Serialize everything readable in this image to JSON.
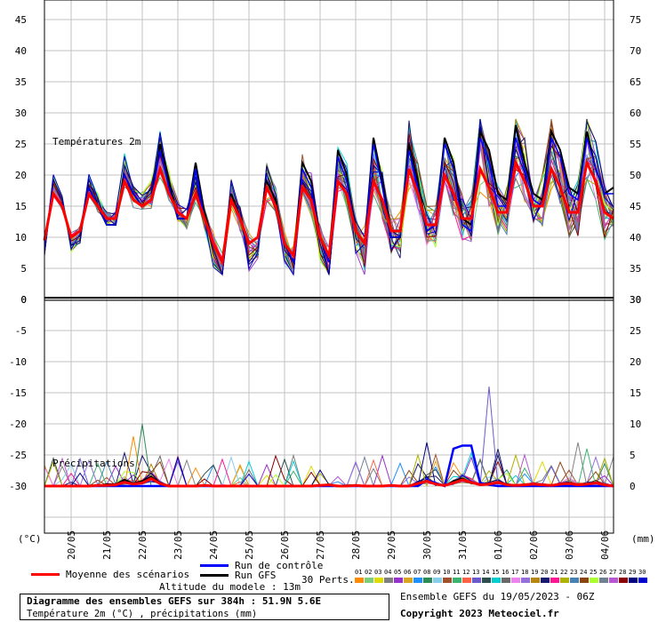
{
  "chart_data": [
    {
      "type": "line",
      "panel": "temperature",
      "label": "Températures 2m",
      "ylim_left": [
        0,
        45
      ],
      "yticks_left": [
        "0",
        "5",
        "10",
        "15",
        "20",
        "25",
        "30",
        "35",
        "40",
        "45"
      ],
      "yticks_right": [
        "30",
        "35",
        "40",
        "45",
        "50",
        "55",
        "60",
        "65",
        "70",
        "75"
      ],
      "x_dates": [
        "20/05",
        "21/05",
        "22/05",
        "23/05",
        "24/05",
        "25/05",
        "26/05",
        "27/05",
        "28/05",
        "29/05",
        "30/05",
        "31/05",
        "01/06",
        "02/06",
        "03/06",
        "04/06"
      ],
      "x_hours": [
        0,
        384
      ],
      "mean_series": {
        "name": "Moyenne des scénarios",
        "x": [
          0,
          6,
          12,
          18,
          24,
          30,
          36,
          42,
          48,
          54,
          60,
          66,
          72,
          78,
          84,
          90,
          96,
          102,
          108,
          114,
          120,
          126,
          132,
          138,
          144,
          150,
          156,
          162,
          168,
          174,
          180,
          186,
          192,
          198,
          204,
          210,
          216,
          222,
          228,
          234,
          240,
          246,
          252,
          258,
          264,
          270,
          276,
          282,
          288,
          294,
          300,
          306,
          312,
          318,
          324,
          330,
          336,
          342,
          348,
          354,
          360,
          366,
          372,
          378,
          384
        ],
        "y": [
          9.5,
          17,
          15,
          10,
          11,
          17,
          15,
          13,
          13,
          19,
          16,
          15,
          16,
          21,
          17,
          14,
          13,
          17,
          13,
          9,
          6,
          16,
          13,
          9,
          10,
          18,
          15,
          9,
          7,
          18,
          16,
          10,
          7,
          19,
          17,
          11,
          9,
          19,
          16,
          11,
          11,
          21,
          17,
          12,
          12,
          20,
          17,
          13,
          13,
          21,
          18,
          14,
          14,
          22,
          19,
          15,
          15,
          21,
          18,
          14,
          14,
          22,
          19,
          14,
          13
        ]
      },
      "gfs_series": {
        "name": "Run GFS",
        "x": [
          0,
          6,
          12,
          18,
          24,
          30,
          36,
          42,
          48,
          54,
          60,
          66,
          72,
          78,
          84,
          90,
          96,
          102,
          108,
          114,
          120,
          126,
          132,
          138,
          144,
          150,
          156,
          162,
          168,
          174,
          180,
          186,
          192,
          198,
          204,
          210,
          216,
          222,
          228,
          234,
          240,
          246,
          252,
          258,
          264,
          270,
          276,
          282,
          288,
          294,
          300,
          306,
          312,
          318,
          324,
          330,
          336,
          342,
          348,
          354,
          360,
          366,
          372,
          378,
          384
        ],
        "y": [
          9.5,
          17,
          15,
          10,
          11,
          18,
          15,
          12,
          12,
          20,
          17,
          15,
          16,
          25,
          19,
          13,
          13,
          22,
          14,
          9,
          6,
          17,
          13,
          9,
          10,
          19,
          16,
          9,
          6,
          22,
          19,
          10,
          6,
          24,
          20,
          11,
          9,
          26,
          19,
          10,
          10,
          25,
          19,
          11,
          12,
          26,
          22,
          13,
          12,
          27,
          24,
          17,
          16,
          28,
          22,
          17,
          16,
          27,
          24,
          18,
          17,
          27,
          21,
          17,
          18
        ]
      },
      "control_series": {
        "name": "Run de contrôle",
        "x": [
          0,
          6,
          12,
          18,
          24,
          30,
          36,
          42,
          48,
          54,
          60,
          66,
          72,
          78,
          84,
          90,
          96,
          102,
          108,
          114,
          120,
          126,
          132,
          138,
          144,
          150,
          156,
          162,
          168,
          174,
          180,
          186,
          192,
          198,
          204,
          210,
          216,
          222,
          228,
          234,
          240,
          246,
          252,
          258,
          264,
          270,
          276,
          282,
          288,
          294,
          300,
          306,
          312,
          318,
          324,
          330,
          336,
          342,
          348,
          354,
          360,
          366,
          372,
          378,
          384
        ],
        "y": [
          9.5,
          17,
          15,
          10,
          11,
          18,
          15,
          12,
          12,
          20,
          17,
          15,
          16,
          24,
          18,
          13,
          13,
          21,
          13,
          9,
          6,
          16,
          13,
          9,
          10,
          18,
          15,
          9,
          6,
          21,
          18,
          10,
          6,
          23,
          19,
          11,
          9,
          25,
          18,
          10,
          10,
          24,
          18,
          11,
          12,
          25,
          21,
          12,
          11,
          26,
          22,
          15,
          15,
          26,
          21,
          16,
          15,
          26,
          23,
          17,
          16,
          26,
          21,
          17,
          17
        ]
      },
      "perturbation_count": "30 Perts.",
      "member_ids": [
        "01",
        "02",
        "03",
        "04",
        "05",
        "06",
        "07",
        "08",
        "09",
        "10",
        "11",
        "12",
        "13",
        "14",
        "15",
        "16",
        "17",
        "18",
        "19",
        "20",
        "21",
        "22",
        "23",
        "24",
        "25",
        "26",
        "27",
        "28",
        "29",
        "30"
      ],
      "member_colors": [
        "#ff8c00",
        "#7ccd7c",
        "#dddd00",
        "#808080",
        "#9932cc",
        "#daa520",
        "#1e90ff",
        "#2e8b57",
        "#87ceeb",
        "#a0522d",
        "#3cb371",
        "#ff6347",
        "#6a5acd",
        "#2f4f4f",
        "#00ced1",
        "#696969",
        "#ee82ee",
        "#9370db",
        "#b8860b",
        "#191970",
        "#ff1493",
        "#b0b000",
        "#4682b4",
        "#8b4513",
        "#adff2f",
        "#708090",
        "#ba55d3",
        "#8b0000",
        "#000080",
        "#0000cd"
      ]
    },
    {
      "type": "line",
      "panel": "precipitation",
      "label": "Précipitations",
      "ylim_left": [
        -35,
        0
      ],
      "yticks_left": [
        "-30",
        "-25",
        "-20",
        "-15",
        "-10",
        "-5",
        "0"
      ],
      "yticks_right": [
        "0",
        "5",
        "10",
        "15",
        "20",
        "25",
        "30"
      ],
      "left_unit": "(°C)",
      "right_unit": "(mm)",
      "mean_series": {
        "name": "Moyenne des scénarios",
        "x": [
          0,
          6,
          12,
          18,
          24,
          30,
          36,
          42,
          48,
          54,
          60,
          66,
          72,
          78,
          84,
          90,
          96,
          102,
          108,
          114,
          120,
          126,
          132,
          138,
          144,
          150,
          156,
          162,
          168,
          174,
          180,
          186,
          192,
          198,
          204,
          210,
          216,
          222,
          228,
          234,
          240,
          246,
          252,
          258,
          264,
          270,
          276,
          282,
          288,
          294,
          300,
          306,
          312,
          318,
          324,
          330,
          336,
          342,
          348,
          354,
          360,
          366,
          372,
          378,
          384
        ],
        "y": [
          0,
          0,
          0,
          0,
          0,
          0,
          0.1,
          0.1,
          0.2,
          0.6,
          0.3,
          0.5,
          1.2,
          0.4,
          0,
          0,
          0,
          0,
          0.1,
          0,
          0,
          0,
          0,
          0,
          0,
          0,
          0,
          0,
          0,
          0,
          0,
          0.1,
          0.2,
          0,
          0,
          0.1,
          0,
          0,
          0,
          0.1,
          0,
          0,
          0.4,
          0.8,
          0.3,
          0.1,
          0.5,
          1.0,
          0.6,
          0.2,
          0.3,
          0.6,
          0.2,
          0.1,
          0.2,
          0.3,
          0.2,
          0.1,
          0.3,
          0.4,
          0.2,
          0.3,
          0.5,
          0.2,
          0
        ]
      },
      "control_series": {
        "name": "Run de contrôle",
        "x": [
          0,
          6,
          12,
          18,
          24,
          30,
          36,
          42,
          48,
          54,
          60,
          66,
          72,
          78,
          84,
          90,
          96,
          102,
          108,
          114,
          120,
          126,
          132,
          138,
          144,
          150,
          156,
          162,
          168,
          174,
          180,
          186,
          192,
          198,
          204,
          210,
          216,
          222,
          228,
          234,
          240,
          246,
          252,
          258,
          264,
          270,
          276,
          282,
          288,
          294,
          300,
          306,
          312,
          318,
          324,
          330,
          336,
          342,
          348,
          354,
          360,
          366,
          372,
          378,
          384
        ],
        "y": [
          0,
          0,
          0,
          0,
          0,
          0,
          0,
          0,
          0,
          0,
          0,
          0,
          0,
          0,
          0,
          0,
          0,
          0,
          0,
          0,
          0,
          0,
          0,
          0,
          0,
          0,
          0,
          0,
          0,
          0,
          0,
          0,
          0,
          0,
          0,
          0,
          0,
          0,
          0,
          0,
          0,
          0,
          0,
          1.0,
          0.5,
          0,
          6,
          6.5,
          6.5,
          0.5,
          0.2,
          0,
          0,
          0,
          0,
          0,
          0,
          0,
          0,
          0,
          0,
          0,
          0,
          0,
          0
        ]
      },
      "gfs_series": {
        "name": "Run GFS",
        "x": [
          0,
          6,
          12,
          18,
          24,
          30,
          36,
          42,
          48,
          54,
          60,
          66,
          72,
          78,
          84,
          90,
          96,
          102,
          108,
          114,
          120,
          126,
          132,
          138,
          144,
          150,
          156,
          162,
          168,
          174,
          180,
          186,
          192,
          198,
          204,
          210,
          216,
          222,
          228,
          234,
          240,
          246,
          252,
          258,
          264,
          270,
          276,
          282,
          288,
          294,
          300,
          306,
          312,
          318,
          324,
          330,
          336,
          342,
          348,
          354,
          360,
          366,
          372,
          378,
          384
        ],
        "y": [
          0,
          0,
          0,
          0,
          0,
          0,
          0,
          0.3,
          0.3,
          1.0,
          0.4,
          0.8,
          1.5,
          0.5,
          0,
          0,
          0,
          0,
          0,
          0,
          0,
          0,
          0,
          0,
          0,
          0,
          0,
          0,
          0,
          0,
          0,
          0,
          0,
          0,
          0,
          0,
          0,
          0,
          0,
          0,
          0,
          0,
          0.5,
          0.8,
          0.3,
          0,
          0.8,
          1.2,
          0.6,
          0.2,
          0.3,
          0.5,
          0.3,
          0,
          0,
          0.2,
          0.2,
          0,
          0.3,
          0.4,
          0.2,
          0.3,
          0.5,
          0,
          0
        ]
      },
      "peaks": {
        "x": [
          60,
          66,
          168,
          252,
          258,
          264,
          300,
          306,
          324,
          360,
          366
        ],
        "y": [
          8,
          10,
          4,
          5,
          7,
          4,
          16,
          5,
          5,
          7,
          6
        ]
      }
    }
  ],
  "legend": {
    "mean": "Moyenne des scénarios",
    "control": "Run de contrôle",
    "gfs": "Run GFS",
    "perts": "30 Perts.",
    "altitude": "Altitude du modele : 13m"
  },
  "info": {
    "title": "Diagramme des ensembles GEFS sur 384h : 51.9N 5.6E",
    "subtitle": "Température 2m (°C) , précipitations (mm)",
    "run": "Ensemble GEFS du 19/05/2023 - 06Z",
    "copyright": "Copyright 2023 Meteociel.fr"
  },
  "colors": {
    "mean": "#ff0000",
    "control": "#0000ff",
    "gfs": "#000000",
    "grid": "#c0c0c0"
  }
}
